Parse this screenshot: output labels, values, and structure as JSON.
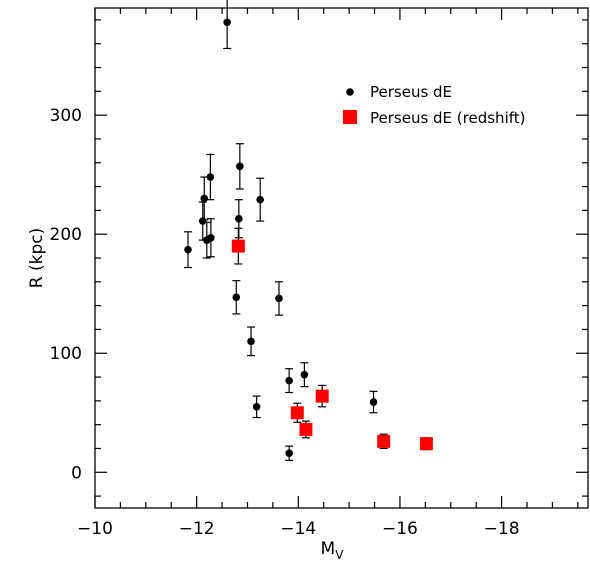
{
  "chart_data": {
    "type": "scatter",
    "xlabel": "M",
    "xlabel_sub": "V",
    "ylabel": "R (kpc)",
    "xlim": [
      -10,
      -19.7
    ],
    "ylim": [
      -30,
      390
    ],
    "x_reversed": true,
    "x_ticks": [
      -10,
      -12,
      -14,
      -16,
      -18
    ],
    "x_tick_labels": [
      "−10",
      "−12",
      "−14",
      "−16",
      "−18"
    ],
    "y_ticks": [
      0,
      100,
      200,
      300
    ],
    "y_tick_labels": [
      "0",
      "100",
      "200",
      "300"
    ],
    "grid": false,
    "legend_position": "top-right",
    "series": [
      {
        "name": "Perseus dE",
        "marker": "circle",
        "color": "#000000",
        "points": [
          {
            "x": -12.6,
            "y": 378,
            "err": 22
          },
          {
            "x": -11.83,
            "y": 187,
            "err": 15
          },
          {
            "x": -12.12,
            "y": 211,
            "err": 16
          },
          {
            "x": -12.15,
            "y": 230,
            "err": 18
          },
          {
            "x": -12.27,
            "y": 248,
            "err": 19
          },
          {
            "x": -12.2,
            "y": 195,
            "err": 15
          },
          {
            "x": -12.28,
            "y": 197,
            "err": 16
          },
          {
            "x": -12.85,
            "y": 257,
            "err": 19
          },
          {
            "x": -12.83,
            "y": 213,
            "err": 16
          },
          {
            "x": -13.25,
            "y": 229,
            "err": 18
          },
          {
            "x": -12.78,
            "y": 147,
            "err": 14
          },
          {
            "x": -13.07,
            "y": 110,
            "err": 12
          },
          {
            "x": -13.62,
            "y": 146,
            "err": 14
          },
          {
            "x": -13.18,
            "y": 55,
            "err": 9
          },
          {
            "x": -13.82,
            "y": 77,
            "err": 10
          },
          {
            "x": -14.12,
            "y": 82,
            "err": 10
          },
          {
            "x": -13.82,
            "y": 16,
            "err": 6
          },
          {
            "x": -15.48,
            "y": 59,
            "err": 9
          }
        ]
      },
      {
        "name": "Perseus dE (redshift)",
        "marker": "square",
        "color": "#ff0000",
        "points": [
          {
            "x": -12.82,
            "y": 190,
            "err": 15
          },
          {
            "x": -13.98,
            "y": 50,
            "err": 8
          },
          {
            "x": -14.15,
            "y": 36,
            "err": 7
          },
          {
            "x": -14.47,
            "y": 64,
            "err": 9
          },
          {
            "x": -15.68,
            "y": 26,
            "err": 6
          },
          {
            "x": -16.52,
            "y": 24,
            "err": 5
          }
        ]
      }
    ]
  }
}
